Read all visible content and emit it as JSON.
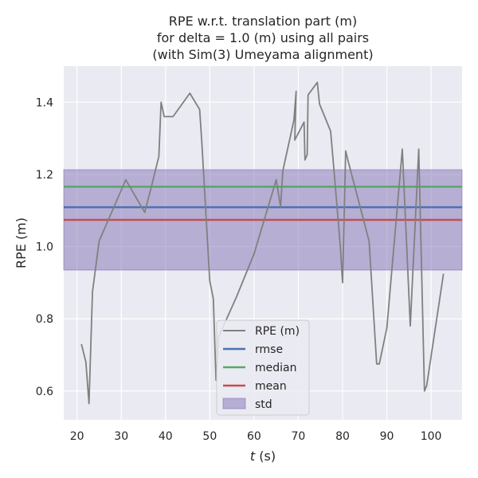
{
  "chart_data": {
    "type": "line",
    "title_lines": [
      "RPE w.r.t. translation part (m)",
      "for delta = 1.0 (m) using all pairs",
      "(with Sim(3) Umeyama alignment)"
    ],
    "xlabel_italic": "t",
    "xlabel_unit": " (s)",
    "ylabel": "RPE (m)",
    "xlim": [
      17,
      107
    ],
    "ylim": [
      0.52,
      1.5
    ],
    "xticks": [
      20,
      30,
      40,
      50,
      60,
      70,
      80,
      90,
      100
    ],
    "yticks": [
      0.6,
      0.8,
      1.0,
      1.2,
      1.4
    ],
    "ytick_labels": [
      "0.6",
      "0.8",
      "1.0",
      "1.2",
      "1.4"
    ],
    "grid": true,
    "legend_position": "bottom-center",
    "series": [
      {
        "name": "RPE (m)",
        "color": "#808080",
        "x": [
          21.0,
          22.0,
          22.7,
          23.5,
          25.0,
          31.0,
          35.3,
          37.0,
          38.5,
          39.0,
          39.7,
          41.7,
          45.5,
          47.7,
          48.2,
          50.0,
          50.8,
          51.4,
          52.0,
          56.0,
          60.0,
          65.0,
          66.0,
          66.5,
          69.0,
          69.5,
          69.2,
          71.3,
          71.5,
          72.0,
          72.2,
          74.3,
          74.8,
          77.3,
          78.0,
          79.5,
          80.0,
          80.7,
          81.3,
          86.0,
          87.7,
          88.3,
          90.0,
          93.5,
          95.3,
          97.2,
          98.5,
          99.0,
          102.8
        ],
        "y": [
          0.73,
          0.68,
          0.565,
          0.875,
          1.015,
          1.185,
          1.095,
          1.175,
          1.25,
          1.4,
          1.36,
          1.36,
          1.425,
          1.38,
          1.29,
          0.905,
          0.855,
          0.63,
          0.75,
          0.86,
          0.98,
          1.185,
          1.11,
          1.21,
          1.35,
          1.43,
          1.295,
          1.345,
          1.24,
          1.255,
          1.42,
          1.455,
          1.395,
          1.32,
          1.22,
          1.0,
          0.9,
          1.265,
          1.235,
          1.015,
          0.675,
          0.675,
          0.775,
          1.27,
          0.78,
          1.27,
          0.6,
          0.615,
          0.925
        ]
      },
      {
        "name": "rmse",
        "color": "#4c72b0",
        "constant": 1.109
      },
      {
        "name": "median",
        "color": "#55a868",
        "constant": 1.166
      },
      {
        "name": "mean",
        "color": "#c44e52",
        "constant": 1.074
      }
    ],
    "std_band": {
      "name": "std",
      "color": "#8172b3",
      "low": 0.935,
      "high": 1.213
    }
  }
}
